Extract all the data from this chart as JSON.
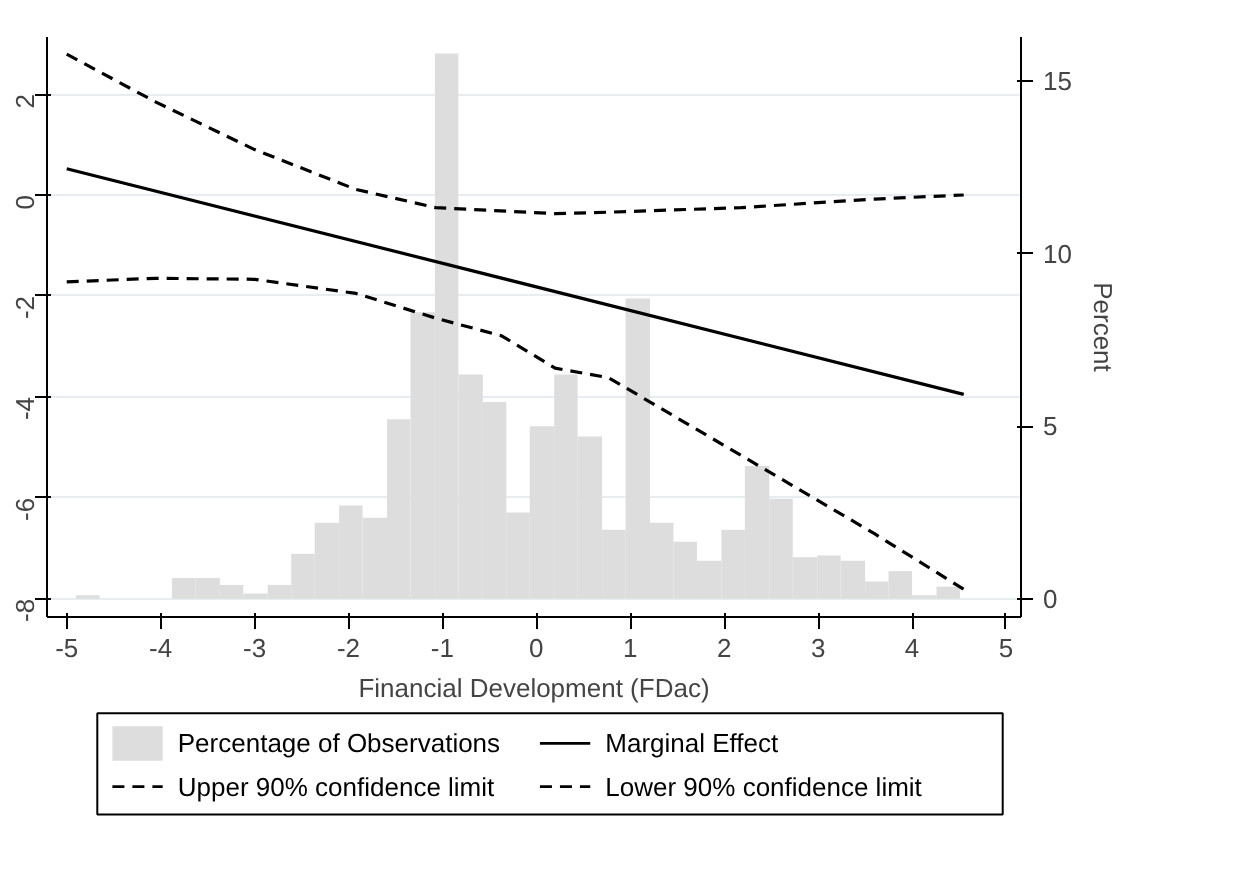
{
  "chart_data": {
    "type": "line",
    "xlabel": "Financial Development (FDac)",
    "y2label": "Percent",
    "xlim": [
      -5.21,
      5.16
    ],
    "xticks": [
      -5,
      -4,
      -3,
      -2,
      -1,
      0,
      1,
      2,
      3,
      4,
      5
    ],
    "ylim": [
      -8.36,
      3.13
    ],
    "yticks": [
      -8,
      -6,
      -4,
      -2,
      0,
      2
    ],
    "y2lim": [
      -0.53,
      16.28
    ],
    "y2ticks": [
      0,
      5,
      10,
      15
    ],
    "grid": "y",
    "legend": "bottom",
    "series": [
      {
        "name": "Percentage of Observations",
        "type": "histogram",
        "axis": "y2",
        "color": "#dddddd",
        "bins": [
          -4.9,
          -4.65,
          -3.88,
          -3.63,
          -3.37,
          -3.12,
          -2.86,
          -2.61,
          -2.36,
          -2.1,
          -1.85,
          -1.59,
          -1.34,
          -1.08,
          -0.83,
          -0.57,
          -0.32,
          -0.07,
          0.19,
          0.44,
          0.7,
          0.95,
          1.21,
          1.46,
          1.71,
          1.97,
          2.22,
          2.48,
          2.73,
          2.99,
          3.24,
          3.5,
          3.75,
          4.0,
          4.26,
          4.51
        ],
        "values": [
          0.1,
          0,
          0.6,
          0.6,
          0.4,
          0.15,
          0.4,
          1.3,
          2.2,
          2.7,
          2.35,
          5.2,
          8.3,
          15.8,
          6.5,
          5.7,
          2.5,
          5.0,
          6.5,
          4.7,
          2.0,
          8.7,
          2.2,
          1.65,
          1.1,
          2.0,
          3.85,
          2.9,
          1.2,
          1.25,
          1.1,
          0.5,
          0.8,
          0.1,
          0.35
        ]
      },
      {
        "name": "Marginal Effect",
        "color": "#000000",
        "line_style": "solid",
        "x": [
          -5,
          4.55
        ],
        "values": [
          0.52,
          -3.95
        ]
      },
      {
        "name": "Upper 90% confidence limit",
        "color": "#000000",
        "line_style": "dashed",
        "x": [
          -5,
          -4.05,
          -3.0,
          -1.92,
          -1.07,
          0.2,
          0.77,
          2.18,
          3.6,
          4.55
        ],
        "values": [
          2.79,
          1.84,
          0.9,
          0.11,
          -0.25,
          -0.37,
          -0.34,
          -0.25,
          -0.08,
          0.0
        ]
      },
      {
        "name": "Lower 90% confidence limit",
        "color": "#000000",
        "line_style": "dashed",
        "x": [
          -5,
          -4.05,
          -3.0,
          -1.92,
          -1.07,
          -0.37,
          0.2,
          0.77,
          2.19,
          3.6,
          4.55
        ],
        "values": [
          -1.72,
          -1.65,
          -1.67,
          -1.95,
          -2.44,
          -2.79,
          -3.43,
          -3.62,
          -5.17,
          -6.71,
          -7.81
        ]
      }
    ]
  }
}
